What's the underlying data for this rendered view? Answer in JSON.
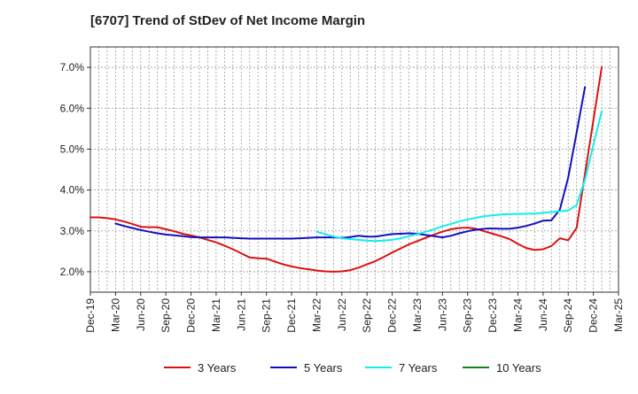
{
  "chart_data": {
    "type": "line",
    "title": "[6707]  Trend of StDev of Net Income Margin",
    "xlabel": "",
    "ylabel": "",
    "x_start": "2019-12",
    "x_step_months": 3,
    "x_tick_labels": [
      "Dec-19",
      "Mar-20",
      "Jun-20",
      "Sep-20",
      "Dec-20",
      "Mar-21",
      "Jun-21",
      "Sep-21",
      "Dec-21",
      "Mar-22",
      "Jun-22",
      "Sep-22",
      "Dec-22",
      "Mar-23",
      "Jun-23",
      "Sep-23",
      "Dec-23",
      "Mar-24",
      "Jun-24",
      "Sep-24",
      "Dec-24",
      "Mar-25"
    ],
    "y_tick_labels": [
      "2.0%",
      "3.0%",
      "4.0%",
      "5.0%",
      "6.0%",
      "7.0%"
    ],
    "y_ticks": [
      2.0,
      3.0,
      4.0,
      5.0,
      6.0,
      7.0
    ],
    "ylim": [
      1.5,
      7.5
    ],
    "grid": true,
    "legend_position": "bottom",
    "series": [
      {
        "name": "3 Years",
        "color": "#dd1111",
        "start": "2019-12",
        "step_months": 1,
        "values": [
          3.33,
          3.33,
          3.31,
          3.28,
          3.23,
          3.17,
          3.1,
          3.09,
          3.09,
          3.04,
          2.99,
          2.93,
          2.89,
          2.84,
          2.78,
          2.72,
          2.64,
          2.55,
          2.45,
          2.35,
          2.33,
          2.32,
          2.25,
          2.18,
          2.13,
          2.09,
          2.06,
          2.03,
          2.01,
          2.0,
          2.01,
          2.04,
          2.1,
          2.18,
          2.26,
          2.36,
          2.47,
          2.57,
          2.67,
          2.75,
          2.83,
          2.91,
          2.98,
          3.04,
          3.07,
          3.08,
          3.05,
          2.99,
          2.93,
          2.87,
          2.8,
          2.68,
          2.58,
          2.53,
          2.55,
          2.63,
          2.82,
          2.77,
          3.07,
          4.4,
          5.7,
          7.01
        ]
      },
      {
        "name": "5 Years",
        "color": "#1111bb",
        "start": "2020-03",
        "step_months": 1,
        "values": [
          3.18,
          3.12,
          3.07,
          3.02,
          2.98,
          2.94,
          2.91,
          2.89,
          2.87,
          2.85,
          2.84,
          2.84,
          2.84,
          2.84,
          2.83,
          2.82,
          2.81,
          2.81,
          2.81,
          2.81,
          2.81,
          2.81,
          2.82,
          2.83,
          2.84,
          2.84,
          2.84,
          2.83,
          2.85,
          2.88,
          2.86,
          2.86,
          2.89,
          2.92,
          2.93,
          2.94,
          2.93,
          2.9,
          2.87,
          2.84,
          2.88,
          2.94,
          2.99,
          3.03,
          3.05,
          3.06,
          3.05,
          3.05,
          3.08,
          3.12,
          3.18,
          3.25,
          3.26,
          3.52,
          4.3,
          5.4,
          6.52
        ]
      },
      {
        "name": "7 Years",
        "color": "#11eeee",
        "start": "2022-03",
        "step_months": 1,
        "values": [
          2.98,
          2.92,
          2.86,
          2.82,
          2.8,
          2.78,
          2.76,
          2.75,
          2.76,
          2.78,
          2.82,
          2.87,
          2.92,
          2.98,
          3.04,
          3.11,
          3.17,
          3.23,
          3.28,
          3.32,
          3.36,
          3.38,
          3.4,
          3.41,
          3.41,
          3.42,
          3.42,
          3.44,
          3.46,
          3.48,
          3.5,
          3.63,
          4.25,
          5.1,
          5.93
        ]
      },
      {
        "name": "10 Years",
        "color": "#118811",
        "start": "2024-12",
        "step_months": 1,
        "values": []
      }
    ]
  }
}
